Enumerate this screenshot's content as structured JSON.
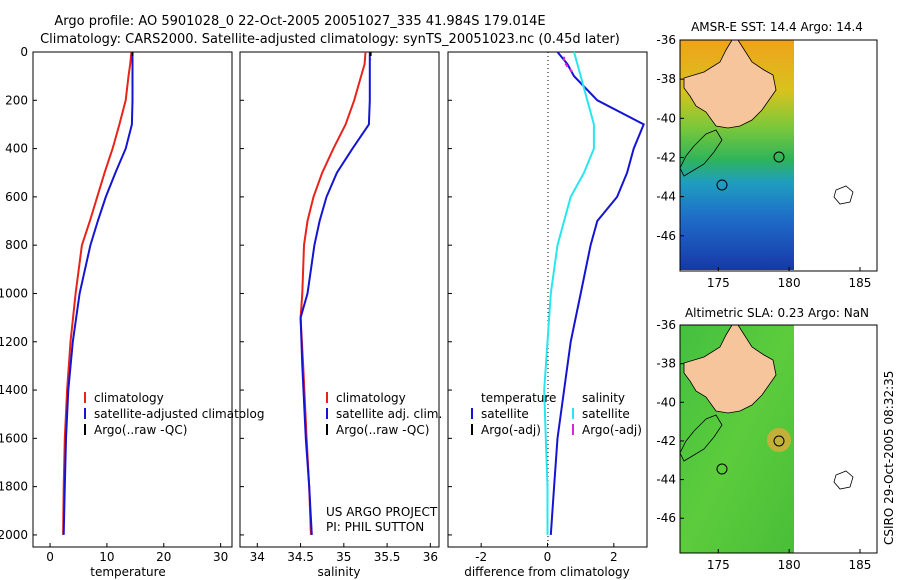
{
  "header": {
    "line1": "Argo profile: AO 5901028_0 22-Oct-2005 20051027_335 41.984S 179.014E",
    "line2": "Climatology: CARS2000. Satellite-adjusted climatology: synTS_20051023.nc (0.45d later)"
  },
  "colors": {
    "climatology": "#e8231a",
    "satellite": "#1414d2",
    "argo": "#000000",
    "sat_salinity": "#28e6f0",
    "argo_salinity": "#e020e0",
    "land": "#f6c59b"
  },
  "chart_data": [
    {
      "type": "line",
      "xlabel": "temperature",
      "ylabel": "",
      "xlim": [
        -3,
        32
      ],
      "ylim": [
        2050,
        0
      ],
      "xticks": [
        "0",
        "10",
        "20",
        "30"
      ],
      "yticks": [
        "0",
        "200",
        "400",
        "600",
        "800",
        "1000",
        "1200",
        "1400",
        "1600",
        "1800",
        "2000"
      ],
      "legend": [
        "climatology",
        "satellite-adjusted climatolog",
        "Argo(..raw -QC)"
      ],
      "series": [
        {
          "name": "climatology",
          "color": "#e8231a",
          "x": [
            14.3,
            14.1,
            13.8,
            13.3,
            12.2,
            11.0,
            9.6,
            8.3,
            7.0,
            5.6,
            4.5,
            3.6,
            3.0,
            2.6,
            2.4,
            2.3
          ],
          "y": [
            0,
            50,
            100,
            200,
            300,
            400,
            500,
            600,
            700,
            800,
            1000,
            1200,
            1400,
            1600,
            1800,
            2000
          ]
        },
        {
          "name": "satellite-adjusted climatolog",
          "color": "#1414d2",
          "x": [
            14.5,
            14.5,
            14.5,
            14.5,
            14.4,
            13.3,
            11.5,
            9.8,
            8.4,
            7.1,
            5.2,
            4.0,
            3.2,
            2.8,
            2.6,
            2.4
          ],
          "y": [
            0,
            50,
            100,
            200,
            300,
            400,
            500,
            600,
            700,
            800,
            1000,
            1200,
            1400,
            1600,
            1800,
            2000
          ]
        },
        {
          "name": "Argo(..raw -QC)",
          "color": "#000000",
          "x": [
            14.5,
            14.5
          ],
          "y": [
            0,
            20
          ]
        }
      ]
    },
    {
      "type": "line",
      "xlabel": "salinity",
      "ylabel": "",
      "xlim": [
        33.8,
        36.1
      ],
      "ylim": [
        2050,
        0
      ],
      "xticks": [
        "34",
        "34.5",
        "35",
        "35.5",
        "36"
      ],
      "legend": [
        "climatology",
        "satellite adj. clim.",
        "Argo(..raw -QC)"
      ],
      "annotation": [
        "US ARGO PROJECT",
        "PI: PHIL SUTTON"
      ],
      "series": [
        {
          "name": "climatology",
          "color": "#e8231a",
          "x": [
            35.25,
            35.24,
            35.2,
            35.12,
            35.02,
            34.88,
            34.75,
            34.65,
            34.58,
            34.54,
            34.52,
            34.5,
            34.53,
            34.57,
            34.6,
            34.62
          ],
          "y": [
            0,
            50,
            100,
            200,
            300,
            400,
            500,
            600,
            700,
            800,
            1000,
            1100,
            1300,
            1600,
            1800,
            2000
          ]
        },
        {
          "name": "satellite adj. clim.",
          "color": "#1414d2",
          "x": [
            35.3,
            35.3,
            35.3,
            35.3,
            35.29,
            35.1,
            34.92,
            34.8,
            34.72,
            34.66,
            34.58,
            34.5,
            34.52,
            34.56,
            34.6,
            34.63
          ],
          "y": [
            0,
            50,
            100,
            200,
            300,
            400,
            500,
            600,
            700,
            800,
            1000,
            1100,
            1300,
            1600,
            1800,
            2000
          ]
        },
        {
          "name": "Argo(..raw -QC)",
          "color": "#000000",
          "x": [
            35.31,
            35.31
          ],
          "y": [
            0,
            30
          ]
        }
      ]
    },
    {
      "type": "line",
      "xlabel": "difference from climatology",
      "ylabel": "",
      "xlim": [
        -3,
        3
      ],
      "ylim": [
        2050,
        0
      ],
      "xticks": [
        "-2",
        "0",
        "2"
      ],
      "legend_temperature": [
        "temperature",
        "satellite",
        "Argo(-adj)"
      ],
      "legend_salinity": [
        "salinity",
        "satellite",
        "Argo(-adj)"
      ],
      "series": [
        {
          "name": "temperature satellite",
          "color": "#1414d2",
          "x": [
            0.3,
            0.6,
            0.8,
            1.5,
            2.9,
            2.6,
            2.4,
            2.1,
            1.5,
            1.3,
            1.0,
            0.7,
            0.5,
            0.3,
            0.2,
            0.1
          ],
          "y": [
            0,
            50,
            100,
            200,
            300,
            400,
            500,
            600,
            700,
            800,
            1000,
            1200,
            1400,
            1600,
            1800,
            2000
          ]
        },
        {
          "name": "salinity satellite",
          "color": "#28e6f0",
          "x": [
            0.8,
            0.9,
            1.0,
            1.2,
            1.4,
            1.4,
            1.1,
            0.7,
            0.5,
            0.3,
            0.1,
            0.0,
            -0.1,
            -0.05,
            0.0,
            0.0
          ],
          "y": [
            0,
            50,
            100,
            200,
            300,
            400,
            500,
            600,
            700,
            800,
            1000,
            1200,
            1400,
            1600,
            1800,
            2000
          ]
        },
        {
          "name": "Argo(-adj)",
          "color": "#e020e0",
          "x": [
            0.5,
            0.5,
            0.6,
            0.8
          ],
          "y": [
            20,
            40,
            60,
            90
          ]
        }
      ]
    }
  ],
  "maps": [
    {
      "title": "AMSR-E SST: 14.4 Argo: 14.4",
      "xticks": [
        "175",
        "180",
        "185"
      ],
      "yticks": [
        "-36",
        "-38",
        "-40",
        "-42",
        "-44",
        "-46"
      ]
    },
    {
      "title": "Altimetric SLA: 0.23 Argo: NaN",
      "xticks": [
        "175",
        "180",
        "185"
      ],
      "yticks": [
        "-36",
        "-38",
        "-40",
        "-42",
        "-44",
        "-46"
      ]
    }
  ],
  "footer": {
    "credit": "CSIRO 29-Oct-2005 08:32:35"
  }
}
